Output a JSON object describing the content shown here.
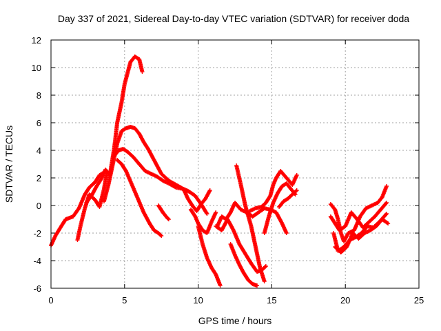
{
  "chart_data": {
    "type": "scatter",
    "title": "Day 337 of 2021, Sidereal Day-to-day VTEC variation (SDTVAR) for receiver doda",
    "xlabel": "GPS time / hours",
    "ylabel": "SDTVAR / TECUs",
    "xlim": [
      0,
      25
    ],
    "ylim": [
      -6,
      12
    ],
    "xticks": [
      0,
      5,
      10,
      15,
      20,
      25
    ],
    "yticks": [
      -6,
      -4,
      -2,
      0,
      2,
      4,
      6,
      8,
      10,
      12
    ],
    "grid": true,
    "marker": "+",
    "color": "#ff0000",
    "series": [
      {
        "x": [
          0.0,
          0.3,
          0.7,
          1.0,
          1.5,
          1.9,
          2.3,
          2.6,
          3.0,
          3.3,
          3.6
        ],
        "y": [
          -2.9,
          -2.2,
          -1.5,
          -1.0,
          -0.8,
          -0.2,
          0.8,
          1.3,
          1.7,
          2.2,
          2.4
        ]
      },
      {
        "x": [
          1.8,
          2.0,
          2.3,
          2.6,
          3.0,
          3.3,
          3.6,
          3.8
        ],
        "y": [
          -2.5,
          -1.5,
          -0.2,
          0.8,
          0.4,
          -0.1,
          1.2,
          2.4
        ]
      },
      {
        "x": [
          2.4,
          2.8,
          3.1,
          3.4,
          3.7,
          4.0,
          4.3,
          4.5,
          4.8,
          5.0,
          5.2,
          5.4,
          5.7,
          6.0,
          6.2
        ],
        "y": [
          0.2,
          0.8,
          1.4,
          1.9,
          2.6,
          2.2,
          4.2,
          6.0,
          7.5,
          8.8,
          9.6,
          10.4,
          10.8,
          10.6,
          9.7
        ]
      },
      {
        "x": [
          3.6,
          3.9,
          4.2,
          4.5,
          4.8,
          5.1,
          5.4,
          5.7,
          6.0,
          6.3,
          6.6,
          7.0,
          7.5,
          8.0,
          8.5,
          9.0,
          9.4
        ],
        "y": [
          0.3,
          1.5,
          3.0,
          4.5,
          5.4,
          5.6,
          5.7,
          5.6,
          5.2,
          4.6,
          4.1,
          3.3,
          2.3,
          1.8,
          1.5,
          1.2,
          1.0
        ]
      },
      {
        "x": [
          4.3,
          4.6,
          4.9,
          5.2,
          5.6,
          6.0,
          6.4,
          6.8,
          7.2,
          7.6,
          8.0,
          8.5,
          9.0,
          9.4,
          9.8,
          10.2,
          10.6
        ],
        "y": [
          3.6,
          4.0,
          4.1,
          3.9,
          3.5,
          3.0,
          2.5,
          2.3,
          2.1,
          1.8,
          1.6,
          1.3,
          1.2,
          1.0,
          0.7,
          0.1,
          -0.6
        ]
      },
      {
        "x": [
          4.5,
          4.8,
          5.1,
          5.5,
          5.9,
          6.3,
          6.7,
          7.0,
          7.3,
          7.5
        ],
        "y": [
          3.3,
          3.0,
          2.5,
          1.5,
          0.5,
          -0.5,
          -1.3,
          -1.8,
          -2.0,
          -2.2
        ]
      },
      {
        "x": [
          7.3,
          7.6,
          7.9,
          8.0
        ],
        "y": [
          0.0,
          -0.5,
          -0.9,
          -1.0
        ]
      },
      {
        "x": [
          9.0,
          9.3,
          9.6,
          9.9,
          10.2,
          10.5,
          10.8
        ],
        "y": [
          1.2,
          0.5,
          0.0,
          -0.4,
          0.1,
          0.5,
          1.1
        ]
      },
      {
        "x": [
          9.5,
          9.8,
          10.0,
          10.3,
          10.6,
          10.9,
          11.2
        ],
        "y": [
          -0.3,
          -0.8,
          -1.3,
          -1.8,
          -2.0,
          -1.2,
          -0.5
        ]
      },
      {
        "x": [
          10.0,
          10.3,
          10.6,
          10.9,
          11.2,
          11.5
        ],
        "y": [
          -1.5,
          -2.8,
          -3.8,
          -4.5,
          -5.0,
          -5.8
        ]
      },
      {
        "x": [
          11.3,
          11.6,
          11.9,
          12.2,
          12.5,
          12.9,
          13.3,
          13.7,
          14.1,
          14.5,
          14.9,
          15.3,
          15.7,
          16.0
        ],
        "y": [
          -1.5,
          -0.8,
          -1.0,
          -0.5,
          0.2,
          -0.3,
          -0.5,
          -0.8,
          -0.5,
          -0.2,
          -0.3,
          -0.5,
          -1.3,
          -2.0
        ]
      },
      {
        "x": [
          11.2,
          11.6,
          12.0,
          12.4,
          12.8,
          13.2,
          13.6,
          14.0,
          14.3,
          14.6
        ],
        "y": [
          -1.5,
          -1.8,
          -1.0,
          -1.8,
          -2.8,
          -3.5,
          -4.2,
          -4.8,
          -4.7,
          -4.4
        ]
      },
      {
        "x": [
          12.2,
          12.5,
          12.8,
          13.1,
          13.4,
          13.7,
          14.0
        ],
        "y": [
          -2.8,
          -3.6,
          -4.3,
          -4.9,
          -5.4,
          -5.7,
          -5.8
        ]
      },
      {
        "x": [
          12.6,
          12.9,
          13.2,
          13.6,
          13.9,
          14.2,
          14.5
        ],
        "y": [
          2.9,
          1.5,
          0.0,
          -1.5,
          -3.0,
          -4.5,
          -5.5
        ]
      },
      {
        "x": [
          13.5,
          13.9,
          14.3,
          14.6,
          14.9,
          15.1,
          15.3,
          15.6,
          16.0,
          16.4,
          16.7
        ],
        "y": [
          -0.4,
          -0.2,
          -0.1,
          0.2,
          0.7,
          1.5,
          2.0,
          2.5,
          2.0,
          1.5,
          2.2
        ]
      },
      {
        "x": [
          14.5,
          14.8,
          15.1,
          15.4,
          15.7,
          16.0,
          16.3,
          16.6
        ],
        "y": [
          -2.0,
          -0.8,
          0.2,
          0.9,
          1.4,
          1.6,
          1.2,
          0.8
        ]
      },
      {
        "x": [
          15.5,
          15.8,
          16.1,
          16.4,
          16.7
        ],
        "y": [
          -0.1,
          0.3,
          0.5,
          0.8,
          1.1
        ]
      },
      {
        "x": [
          19.0,
          19.3,
          19.5,
          19.7,
          19.9,
          20.2,
          20.6,
          21.0,
          21.4,
          21.8,
          22.2,
          22.5,
          22.8
        ],
        "y": [
          0.1,
          -0.3,
          -1.0,
          -2.0,
          -2.6,
          -2.0,
          -1.8,
          -0.8,
          -0.2,
          0.0,
          0.2,
          0.6,
          1.4
        ]
      },
      {
        "x": [
          19.0,
          19.3,
          19.6,
          20.0,
          20.4,
          20.8,
          21.2,
          21.6,
          22.0,
          22.4,
          22.8
        ],
        "y": [
          -0.8,
          -1.3,
          -1.8,
          -1.5,
          -0.5,
          -1.0,
          -1.6,
          -1.2,
          -0.8,
          -0.3,
          0.2
        ]
      },
      {
        "x": [
          19.2,
          19.5,
          19.9,
          20.3,
          20.7,
          21.1,
          21.5,
          21.9,
          22.3,
          22.8
        ],
        "y": [
          -2.0,
          -3.3,
          -3.0,
          -2.5,
          -2.3,
          -2.0,
          -1.5,
          -1.6,
          -1.2,
          -0.6
        ]
      },
      {
        "x": [
          19.3,
          19.7,
          20.1,
          20.5,
          20.9,
          21.3,
          21.7,
          22.1,
          22.5,
          22.9
        ],
        "y": [
          -3.0,
          -3.4,
          -3.0,
          -2.0,
          -2.4,
          -2.0,
          -1.8,
          -1.5,
          -1.0,
          -1.3
        ]
      }
    ]
  }
}
